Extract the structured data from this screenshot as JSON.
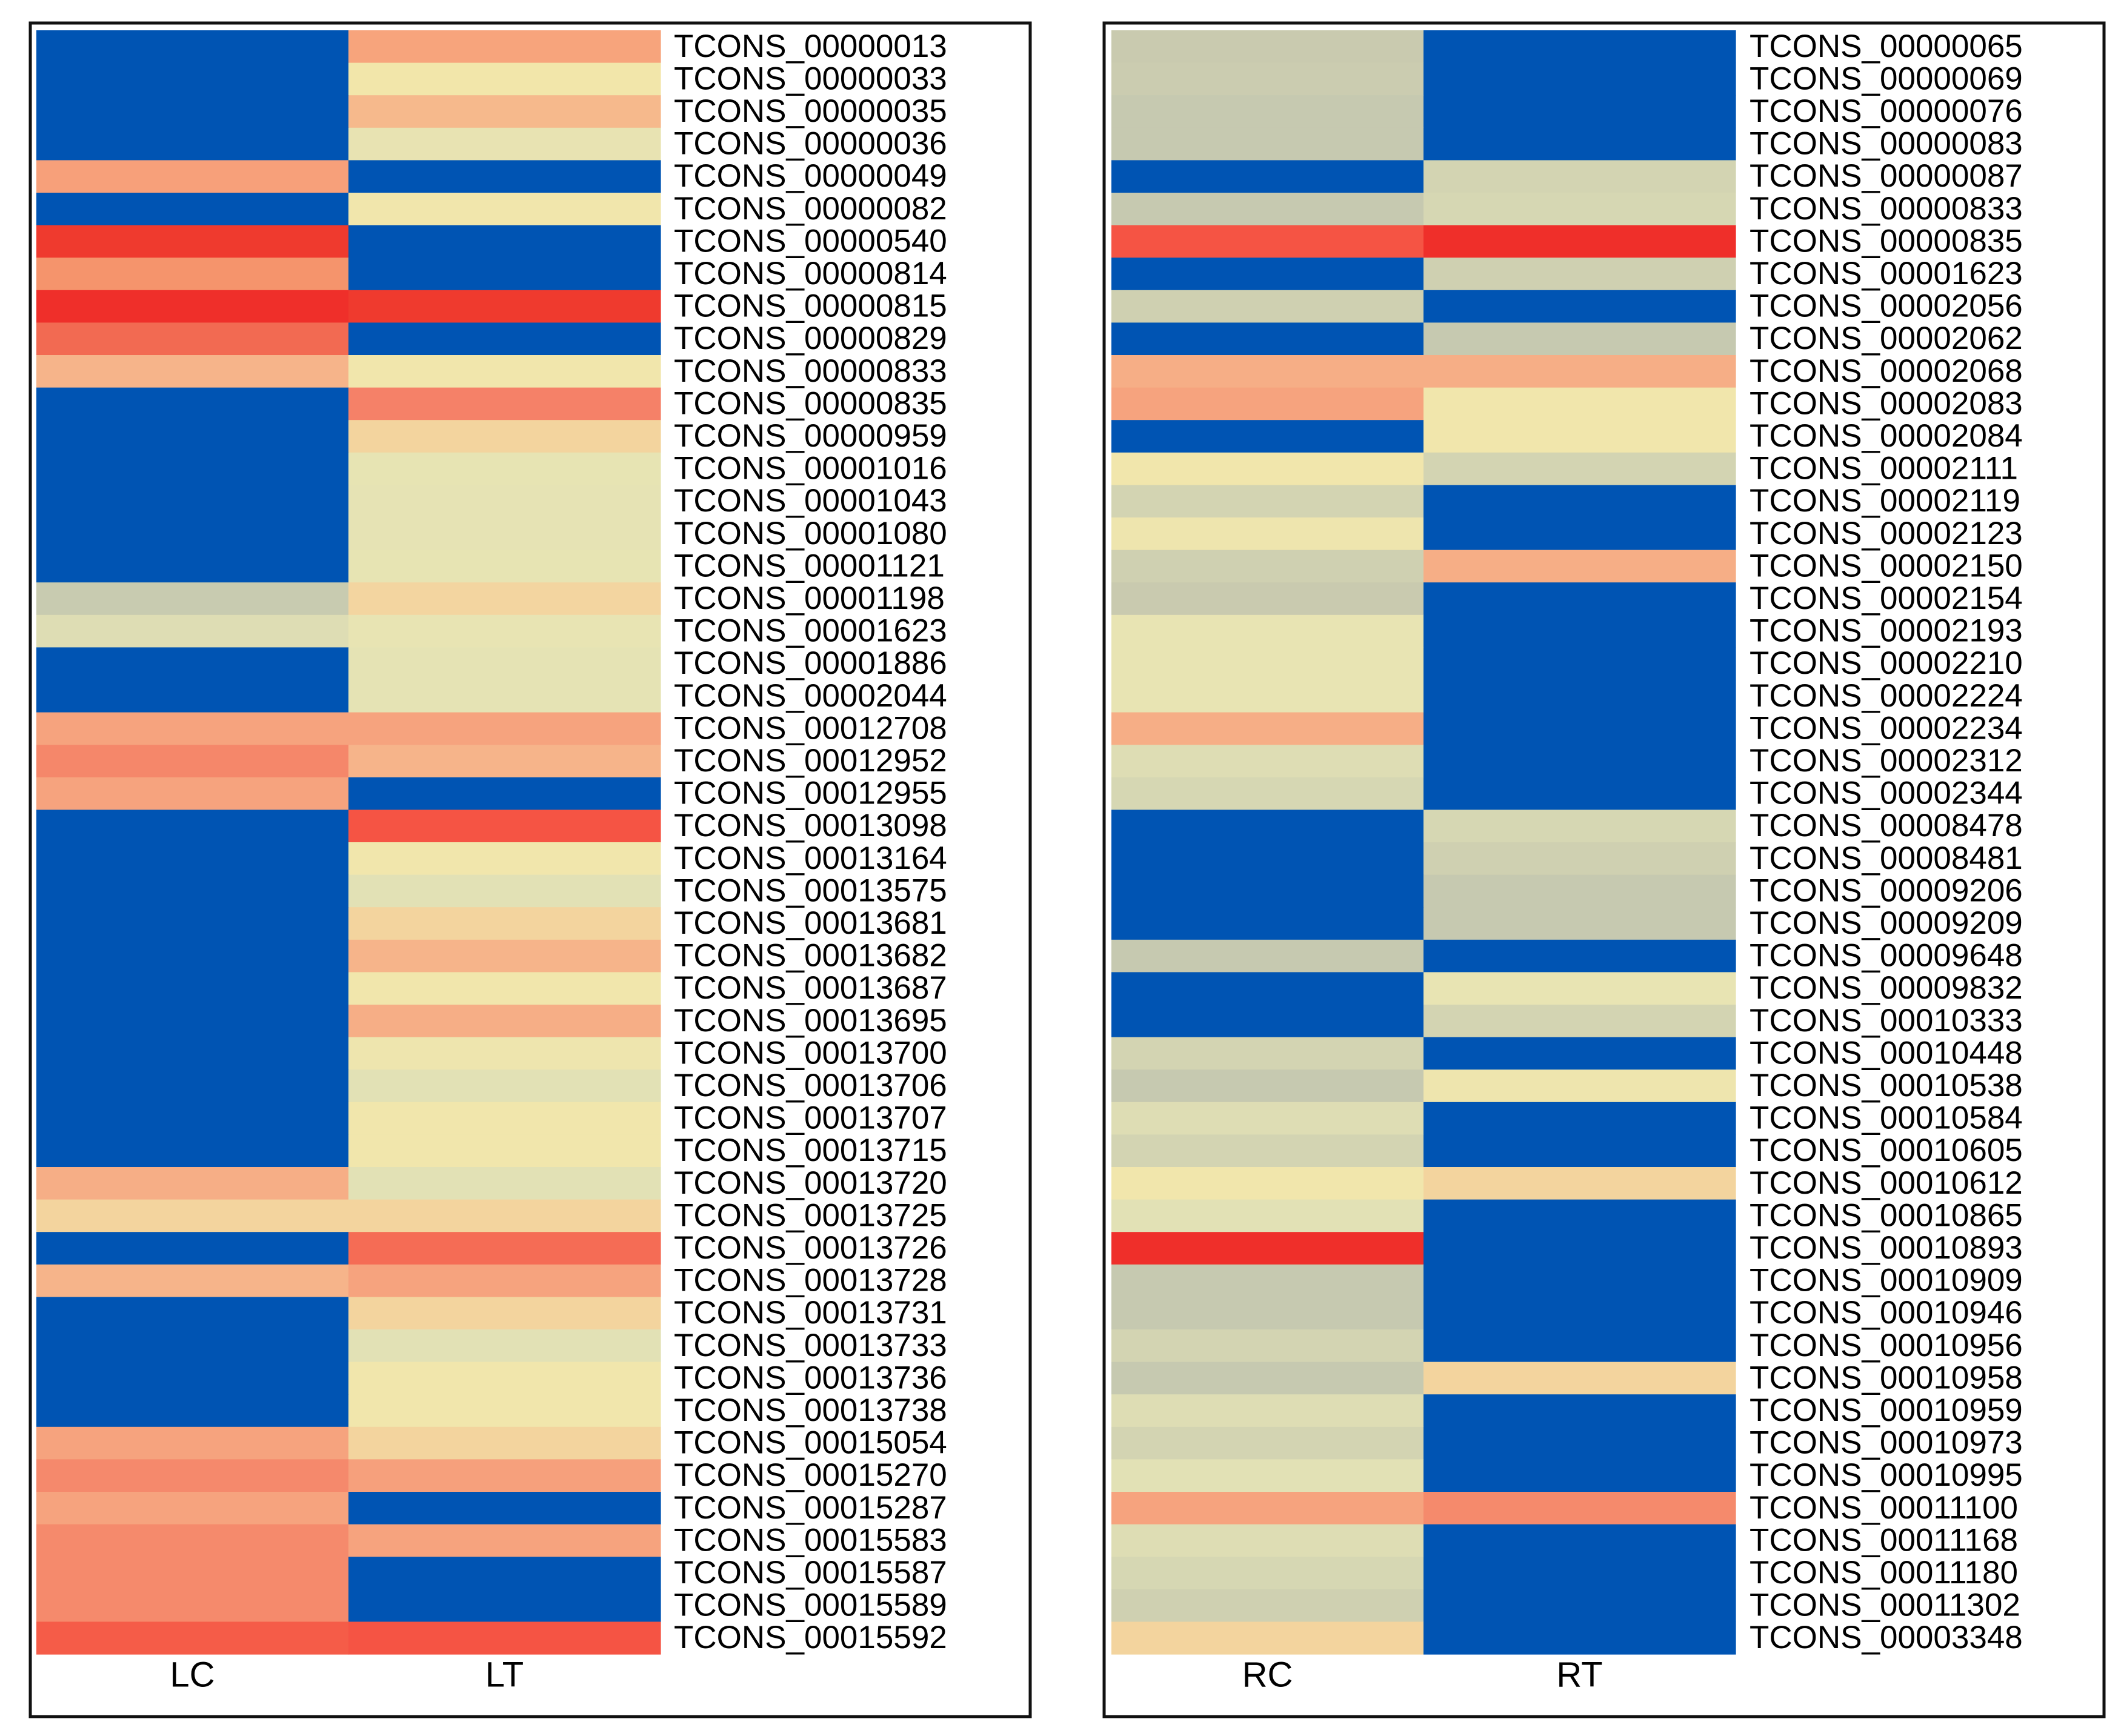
{
  "chart_data": [
    {
      "type": "heatmap",
      "title": "",
      "columns": [
        "LC",
        "LT"
      ],
      "rows": [
        "TCONS_00000013",
        "TCONS_00000033",
        "TCONS_00000035",
        "TCONS_00000036",
        "TCONS_00000049",
        "TCONS_00000082",
        "TCONS_00000540",
        "TCONS_00000814",
        "TCONS_00000815",
        "TCONS_00000829",
        "TCONS_00000833",
        "TCONS_00000835",
        "TCONS_00000959",
        "TCONS_00001016",
        "TCONS_00001043",
        "TCONS_00001080",
        "TCONS_00001121",
        "TCONS_00001198",
        "TCONS_00001623",
        "TCONS_00001886",
        "TCONS_00002044",
        "TCONS_00012708",
        "TCONS_00012952",
        "TCONS_00012955",
        "TCONS_00013098",
        "TCONS_00013164",
        "TCONS_00013575",
        "TCONS_00013681",
        "TCONS_00013682",
        "TCONS_00013687",
        "TCONS_00013695",
        "TCONS_00013700",
        "TCONS_00013706",
        "TCONS_00013707",
        "TCONS_00013715",
        "TCONS_00013720",
        "TCONS_00013725",
        "TCONS_00013726",
        "TCONS_00013728",
        "TCONS_00013731",
        "TCONS_00013733",
        "TCONS_00013736",
        "TCONS_00013738",
        "TCONS_00015054",
        "TCONS_00015270",
        "TCONS_00015287",
        "TCONS_00015583",
        "TCONS_00015587",
        "TCONS_00015589",
        "TCONS_00015592"
      ],
      "colors": [
        [
          "#0054B3",
          "#F7A47C"
        ],
        [
          "#0054B3",
          "#F2E6AA"
        ],
        [
          "#0054B3",
          "#F6B98C"
        ],
        [
          "#0054B3",
          "#E8E3B2"
        ],
        [
          "#F7A07A",
          "#0054B3"
        ],
        [
          "#0054B3",
          "#F1E6AC"
        ],
        [
          "#EF3A2E",
          "#0054B3"
        ],
        [
          "#F5946C",
          "#0054B3"
        ],
        [
          "#EF2F2A",
          "#EF3A2E"
        ],
        [
          "#F26A52",
          "#0054B3"
        ],
        [
          "#F6B48A",
          "#F1E6AC"
        ],
        [
          "#0054B3",
          "#F58168"
        ],
        [
          "#0054B3",
          "#F3D49E"
        ],
        [
          "#0054B3",
          "#E7E4B3"
        ],
        [
          "#0054B3",
          "#E6E3B4"
        ],
        [
          "#0054B3",
          "#E6E3B4"
        ],
        [
          "#0054B3",
          "#E7E4B3"
        ],
        [
          "#C8CBB0",
          "#F3D5A0"
        ],
        [
          "#DEDDB4",
          "#E8E4B3"
        ],
        [
          "#0054B3",
          "#E5E3B4"
        ],
        [
          "#0054B3",
          "#E5E3B4"
        ],
        [
          "#F6A37E",
          "#F6A37E"
        ],
        [
          "#F5876A",
          "#F6B48A"
        ],
        [
          "#F6A37E",
          "#0054B3"
        ],
        [
          "#0054B3",
          "#F55444"
        ],
        [
          "#0054B3",
          "#F1E6AC"
        ],
        [
          "#0054B3",
          "#E2E1B5"
        ],
        [
          "#0054B3",
          "#F3D49E"
        ],
        [
          "#0054B3",
          "#F6B48A"
        ],
        [
          "#0054B3",
          "#F1E6AC"
        ],
        [
          "#0054B3",
          "#F6AE86"
        ],
        [
          "#0054B3",
          "#EEE5AE"
        ],
        [
          "#0054B3",
          "#E2E1B5"
        ],
        [
          "#0054B3",
          "#F1E6AC"
        ],
        [
          "#0054B3",
          "#F1E6AC"
        ],
        [
          "#F6AE86",
          "#E2E1B5"
        ],
        [
          "#F3D49E",
          "#F3D49E"
        ],
        [
          "#0054B3",
          "#F56C55"
        ],
        [
          "#F6B48A",
          "#F6A37E"
        ],
        [
          "#0054B3",
          "#F3D49E"
        ],
        [
          "#0054B3",
          "#E2E1B5"
        ],
        [
          "#0054B3",
          "#F1E6AC"
        ],
        [
          "#0054B3",
          "#F1E6AC"
        ],
        [
          "#F6A37E",
          "#F3D49E"
        ],
        [
          "#F5896C",
          "#F6A07C"
        ],
        [
          "#F6A37E",
          "#0054B3"
        ],
        [
          "#F58A6C",
          "#F6A37E"
        ],
        [
          "#F58A6C",
          "#0054B3"
        ],
        [
          "#F58A6C",
          "#0054B3"
        ],
        [
          "#F55C48",
          "#F55444"
        ]
      ]
    },
    {
      "type": "heatmap",
      "title": "",
      "columns": [
        "RC",
        "RT"
      ],
      "rows": [
        "TCONS_00000065",
        "TCONS_00000069",
        "TCONS_00000076",
        "TCONS_00000083",
        "TCONS_00000087",
        "TCONS_00000833",
        "TCONS_00000835",
        "TCONS_00001623",
        "TCONS_00002056",
        "TCONS_00002062",
        "TCONS_00002068",
        "TCONS_00002083",
        "TCONS_00002084",
        "TCONS_00002111",
        "TCONS_00002119",
        "TCONS_00002123",
        "TCONS_00002150",
        "TCONS_00002154",
        "TCONS_00002193",
        "TCONS_00002210",
        "TCONS_00002224",
        "TCONS_00002234",
        "TCONS_00002312",
        "TCONS_00002344",
        "TCONS_00008478",
        "TCONS_00008481",
        "TCONS_00009206",
        "TCONS_00009209",
        "TCONS_00009648",
        "TCONS_00009832",
        "TCONS_00010333",
        "TCONS_00010448",
        "TCONS_00010538",
        "TCONS_00010584",
        "TCONS_00010605",
        "TCONS_00010612",
        "TCONS_00010865",
        "TCONS_00010893",
        "TCONS_00010909",
        "TCONS_00010946",
        "TCONS_00010956",
        "TCONS_00010958",
        "TCONS_00010959",
        "TCONS_00010973",
        "TCONS_00010995",
        "TCONS_00011100",
        "TCONS_00011168",
        "TCONS_00011180",
        "TCONS_00011302",
        "TCONS_00003348"
      ],
      "colors": [
        [
          "#C9CAAF",
          "#0054B3"
        ],
        [
          "#CBCCB0",
          "#0054B3"
        ],
        [
          "#C6C9B0",
          "#0054B3"
        ],
        [
          "#C6C9B0",
          "#0054B3"
        ],
        [
          "#0054B3",
          "#D3D4B2"
        ],
        [
          "#C6C9B0",
          "#D6D7B3"
        ],
        [
          "#F55444",
          "#EF2F2A"
        ],
        [
          "#0054B3",
          "#CFD0B1"
        ],
        [
          "#CFD0B1",
          "#0054B3"
        ],
        [
          "#0054B3",
          "#C6C9B0"
        ],
        [
          "#F6AE86",
          "#F6AE86"
        ],
        [
          "#F6A37E",
          "#F1E6AC"
        ],
        [
          "#0054B3",
          "#F1E6AC"
        ],
        [
          "#F1E6AC",
          "#D3D4B2"
        ],
        [
          "#D3D4B2",
          "#0054B3"
        ],
        [
          "#EEE5AE",
          "#0054B3"
        ],
        [
          "#CFD0B1",
          "#F6AE86"
        ],
        [
          "#C9CAAF",
          "#0054B3"
        ],
        [
          "#E8E4B3",
          "#0054B3"
        ],
        [
          "#E8E4B3",
          "#0054B3"
        ],
        [
          "#E8E4B3",
          "#0054B3"
        ],
        [
          "#F6AE86",
          "#0054B3"
        ],
        [
          "#DEDDB4",
          "#0054B3"
        ],
        [
          "#D6D7B3",
          "#0054B3"
        ],
        [
          "#0054B3",
          "#D6D7B3"
        ],
        [
          "#0054B3",
          "#CFD0B1"
        ],
        [
          "#0054B3",
          "#C6C9B0"
        ],
        [
          "#0054B3",
          "#C6C9B0"
        ],
        [
          "#C6C9B0",
          "#0054B3"
        ],
        [
          "#0054B3",
          "#E8E4B3"
        ],
        [
          "#0054B3",
          "#D3D4B2"
        ],
        [
          "#D3D4B2",
          "#0054B3"
        ],
        [
          "#C6C9B0",
          "#EEE5AE"
        ],
        [
          "#DEDDB4",
          "#0054B3"
        ],
        [
          "#D3D4B2",
          "#0054B3"
        ],
        [
          "#F1E6AC",
          "#F3D49E"
        ],
        [
          "#E2E1B5",
          "#0054B3"
        ],
        [
          "#EF2F2A",
          "#0054B3"
        ],
        [
          "#C6C9B0",
          "#0054B3"
        ],
        [
          "#C6C9B0",
          "#0054B3"
        ],
        [
          "#D3D4B2",
          "#0054B3"
        ],
        [
          "#C6C9B0",
          "#F3D49E"
        ],
        [
          "#DEDDB4",
          "#0054B3"
        ],
        [
          "#D3D4B2",
          "#0054B3"
        ],
        [
          "#E2E1B5",
          "#0054B3"
        ],
        [
          "#F6A37E",
          "#F58A6C"
        ],
        [
          "#DEDDB4",
          "#0054B3"
        ],
        [
          "#D6D7B3",
          "#0054B3"
        ],
        [
          "#CFD0B1",
          "#0054B3"
        ],
        [
          "#F3D49E",
          "#0054B3"
        ]
      ]
    }
  ]
}
